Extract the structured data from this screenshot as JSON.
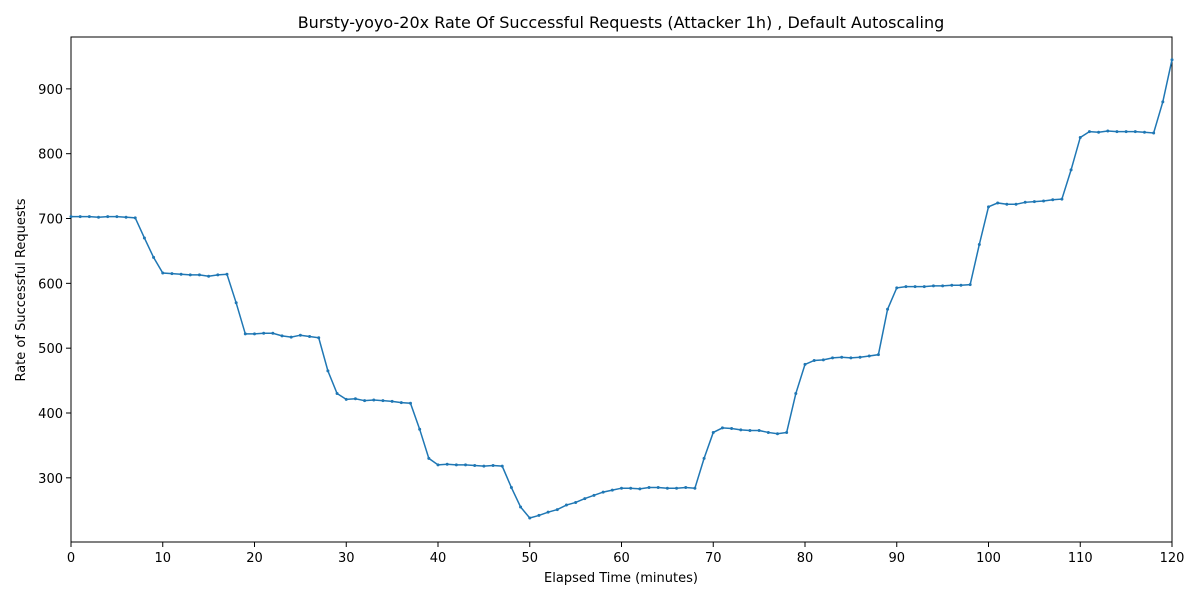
{
  "chart_data": {
    "type": "line",
    "title": "Bursty-yoyo-20x Rate Of Successful Requests (Attacker 1h) , Default Autoscaling",
    "x_label": "Elapsed Time (minutes)",
    "y_label": "Rate of Successful Requests",
    "x": [
      0,
      1,
      2,
      3,
      4,
      5,
      6,
      7,
      8,
      9,
      10,
      11,
      12,
      13,
      14,
      15,
      16,
      17,
      18,
      19,
      20,
      21,
      22,
      23,
      24,
      25,
      26,
      27,
      28,
      29,
      30,
      31,
      32,
      33,
      34,
      35,
      36,
      37,
      38,
      39,
      40,
      41,
      42,
      43,
      44,
      45,
      46,
      47,
      48,
      49,
      50,
      51,
      52,
      53,
      54,
      55,
      56,
      57,
      58,
      59,
      60,
      61,
      62,
      63,
      64,
      65,
      66,
      67,
      68,
      69,
      70,
      71,
      72,
      73,
      74,
      75,
      76,
      77,
      78,
      79,
      80,
      81,
      82,
      83,
      84,
      85,
      86,
      87,
      88,
      89,
      90,
      91,
      92,
      93,
      94,
      95,
      96,
      97,
      98,
      99,
      100,
      101,
      102,
      103,
      104,
      105,
      106,
      107,
      108,
      109,
      110,
      111,
      112,
      113,
      114,
      115,
      116,
      117,
      118,
      119,
      120
    ],
    "series": [
      {
        "color": "#1f77b4",
        "values": [
          703,
          703,
          703,
          702,
          703,
          703,
          702,
          701,
          670,
          640,
          616,
          615,
          614,
          613,
          613,
          611,
          613,
          614,
          570,
          522,
          522,
          523,
          523,
          519,
          517,
          520,
          518,
          516,
          465,
          430,
          421,
          422,
          419,
          420,
          419,
          418,
          416,
          415,
          375,
          330,
          320,
          321,
          320,
          320,
          319,
          318,
          319,
          318,
          285,
          255,
          238,
          242,
          247,
          251,
          258,
          262,
          268,
          273,
          278,
          281,
          284,
          284,
          283,
          285,
          285,
          284,
          284,
          285,
          284,
          330,
          370,
          377,
          376,
          374,
          373,
          373,
          370,
          368,
          370,
          430,
          475,
          481,
          482,
          485,
          486,
          485,
          486,
          488,
          490,
          560,
          593,
          595,
          595,
          595,
          596,
          596,
          597,
          597,
          598,
          660,
          718,
          724,
          722,
          722,
          725,
          726,
          727,
          729,
          730,
          775,
          825,
          834,
          833,
          835,
          834,
          834,
          834,
          833,
          832,
          880,
          945
        ]
      }
    ],
    "xlim": [
      0,
      120
    ],
    "ylim": [
      201,
      980
    ],
    "xticks": [
      0,
      10,
      20,
      30,
      40,
      50,
      60,
      70,
      80,
      90,
      100,
      110,
      120
    ],
    "yticks": [
      300,
      400,
      500,
      600,
      700,
      800,
      900
    ]
  }
}
